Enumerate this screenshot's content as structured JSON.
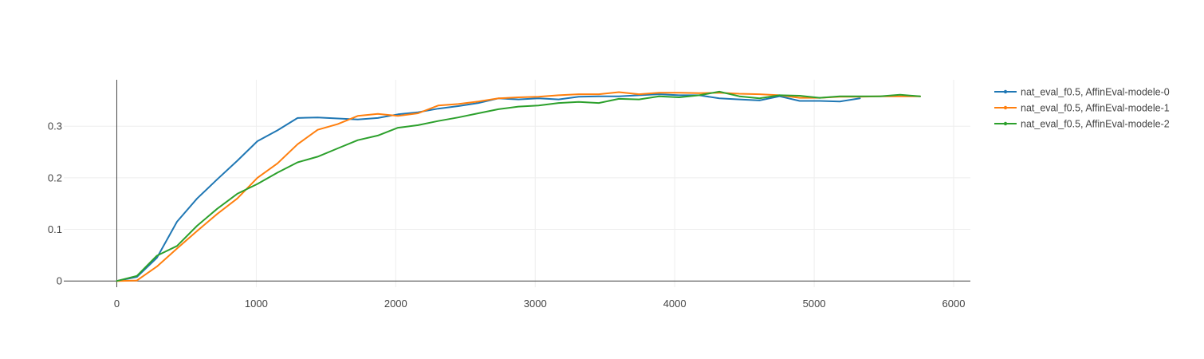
{
  "chart_data": {
    "type": "line",
    "title": "",
    "xlabel": "",
    "ylabel": "",
    "xlim": [
      -380,
      6120
    ],
    "ylim": [
      -0.012,
      0.39
    ],
    "grid": true,
    "legend_placement": "top-right",
    "xticks": [
      0,
      1000,
      2000,
      3000,
      4000,
      5000,
      6000
    ],
    "xtick_labels": [
      "0",
      "1000",
      "2000",
      "3000",
      "4000",
      "5000",
      "6000"
    ],
    "yticks": [
      0,
      0.1,
      0.2,
      0.3
    ],
    "ytick_labels": [
      "0",
      "0.1",
      "0.2",
      "0.3"
    ],
    "series": [
      {
        "name": "nat_eval_f0.5, AffinEval-modele-0",
        "color": "#1f77b4",
        "x": [
          0,
          144,
          288,
          432,
          576,
          720,
          864,
          1008,
          1152,
          1296,
          1440,
          1584,
          1728,
          1872,
          2016,
          2160,
          2304,
          2448,
          2592,
          2736,
          2880,
          3024,
          3168,
          3312,
          3456,
          3600,
          3744,
          3888,
          4032,
          4176,
          4320,
          4464,
          4608,
          4752,
          4896,
          5040,
          5184,
          5328
        ],
        "y": [
          0,
          0.008,
          0.045,
          0.115,
          0.16,
          0.197,
          0.233,
          0.271,
          0.292,
          0.316,
          0.317,
          0.315,
          0.313,
          0.316,
          0.323,
          0.327,
          0.334,
          0.339,
          0.345,
          0.354,
          0.352,
          0.354,
          0.352,
          0.357,
          0.358,
          0.358,
          0.36,
          0.362,
          0.36,
          0.36,
          0.354,
          0.352,
          0.35,
          0.358,
          0.349,
          0.349,
          0.348,
          0.354
        ]
      },
      {
        "name": "nat_eval_f0.5, AffinEval-modele-1",
        "color": "#ff7f0e",
        "x": [
          0,
          144,
          288,
          432,
          576,
          720,
          864,
          1008,
          1152,
          1296,
          1440,
          1584,
          1728,
          1872,
          2016,
          2160,
          2304,
          2448,
          2592,
          2736,
          2880,
          3024,
          3168,
          3312,
          3456,
          3600,
          3744,
          3888,
          4032,
          4176,
          4320,
          4464,
          4608,
          4752,
          4896,
          5040,
          5184,
          5328,
          5472,
          5616,
          5760
        ],
        "y": [
          0,
          0.001,
          0.028,
          0.063,
          0.097,
          0.13,
          0.16,
          0.2,
          0.228,
          0.265,
          0.293,
          0.304,
          0.32,
          0.324,
          0.32,
          0.325,
          0.34,
          0.343,
          0.348,
          0.354,
          0.356,
          0.357,
          0.36,
          0.362,
          0.362,
          0.366,
          0.362,
          0.365,
          0.365,
          0.364,
          0.365,
          0.363,
          0.362,
          0.36,
          0.355,
          0.355,
          0.357,
          0.357,
          0.358,
          0.358,
          0.358
        ]
      },
      {
        "name": "nat_eval_f0.5, AffinEval-modele-2",
        "color": "#2ca02c",
        "x": [
          0,
          144,
          288,
          432,
          576,
          720,
          864,
          1008,
          1152,
          1296,
          1440,
          1584,
          1728,
          1872,
          2016,
          2160,
          2304,
          2448,
          2592,
          2736,
          2880,
          3024,
          3168,
          3312,
          3456,
          3600,
          3744,
          3888,
          4032,
          4176,
          4320,
          4464,
          4608,
          4752,
          4896,
          5040,
          5184,
          5328,
          5472,
          5616,
          5760
        ],
        "y": [
          0,
          0.01,
          0.049,
          0.068,
          0.107,
          0.14,
          0.169,
          0.188,
          0.21,
          0.23,
          0.241,
          0.257,
          0.273,
          0.282,
          0.297,
          0.302,
          0.31,
          0.317,
          0.325,
          0.333,
          0.338,
          0.34,
          0.345,
          0.347,
          0.345,
          0.353,
          0.352,
          0.358,
          0.356,
          0.36,
          0.367,
          0.358,
          0.354,
          0.36,
          0.359,
          0.355,
          0.358,
          0.358,
          0.358,
          0.361,
          0.358
        ]
      }
    ]
  }
}
